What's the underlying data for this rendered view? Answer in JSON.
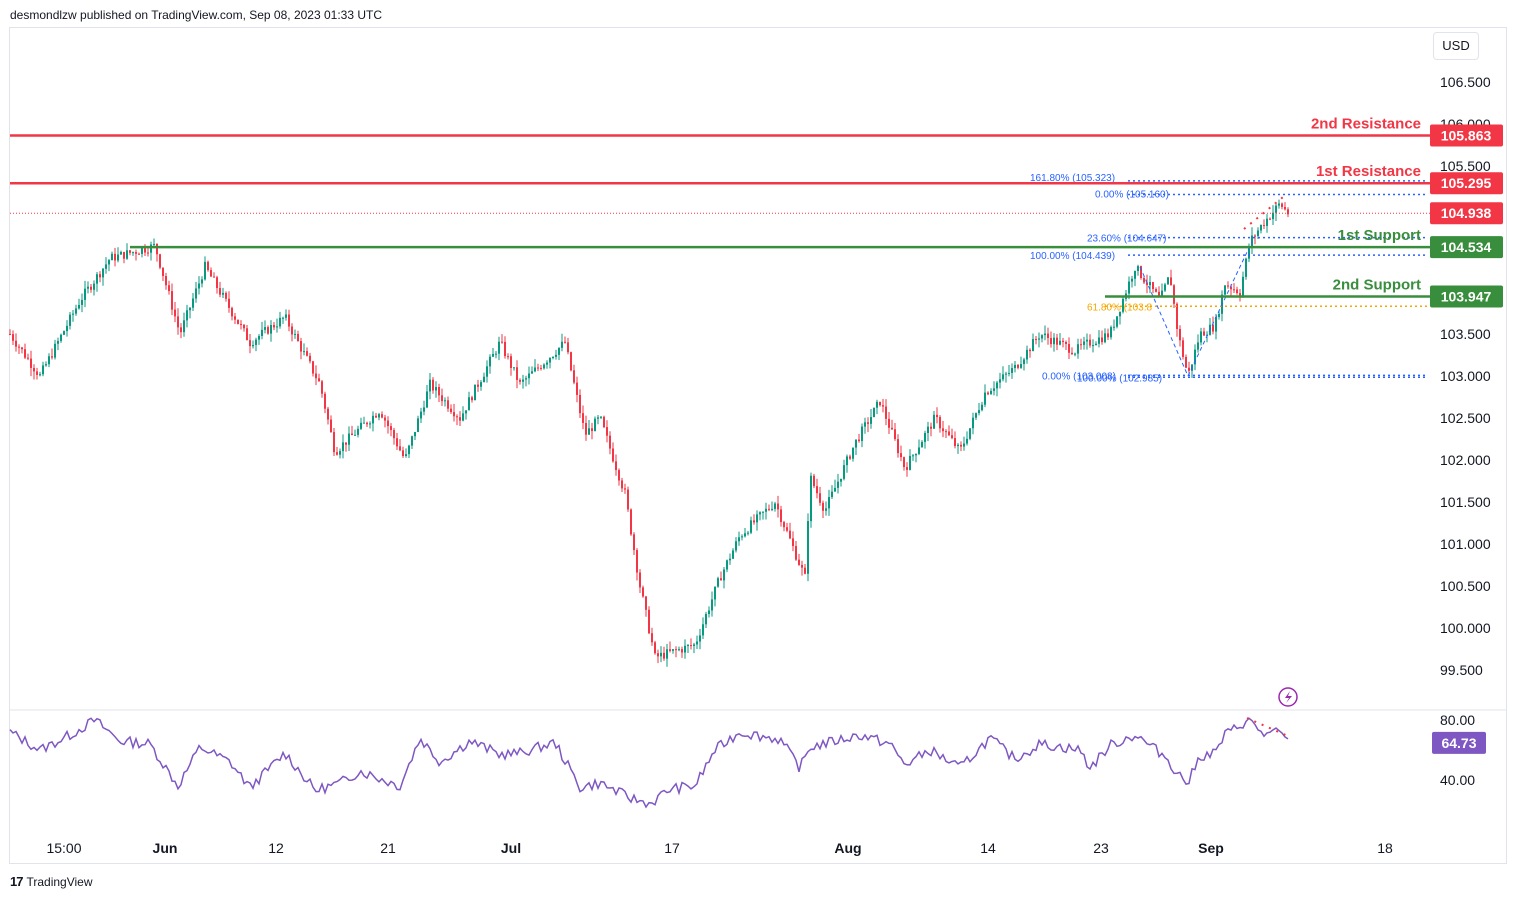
{
  "header": {
    "published": "desmondlzw published on TradingView.com, Sep 08, 2023 01:33 UTC"
  },
  "currency_button": "USD",
  "footer": {
    "logo": "17",
    "brand": "TradingView"
  },
  "colors": {
    "up": "#089981",
    "down": "#f23645",
    "resistance": "#f23645",
    "support": "#388e3c",
    "fib_blue": "#2962ff",
    "fib_orange": "#f7a600",
    "rsi": "#7e57c2",
    "current": "#f23645"
  },
  "chart_data": [
    {
      "type": "candlestick",
      "symbol_quote": "USD",
      "ylim": [
        99.2,
        107.0
      ],
      "y_ticks": [
        "106.500",
        "106.000",
        "105.500",
        "103.500",
        "103.000",
        "102.500",
        "102.000",
        "101.500",
        "101.000",
        "100.500",
        "100.000",
        "99.500"
      ],
      "x_ticks": [
        "15:00",
        "Jun",
        "12",
        "21",
        "Jul",
        "17",
        "Aug",
        "14",
        "23",
        "Sep",
        "18"
      ],
      "series_path": [
        {
          "x": 10,
          "y": 103.5
        },
        {
          "x": 40,
          "y": 103.0
        },
        {
          "x": 80,
          "y": 103.9
        },
        {
          "x": 110,
          "y": 104.4
        },
        {
          "x": 155,
          "y": 104.55
        },
        {
          "x": 180,
          "y": 103.5
        },
        {
          "x": 205,
          "y": 104.3
        },
        {
          "x": 250,
          "y": 103.4
        },
        {
          "x": 285,
          "y": 103.7
        },
        {
          "x": 320,
          "y": 102.9
        },
        {
          "x": 335,
          "y": 102.1
        },
        {
          "x": 380,
          "y": 102.6
        },
        {
          "x": 405,
          "y": 102.0
        },
        {
          "x": 430,
          "y": 102.9
        },
        {
          "x": 460,
          "y": 102.5
        },
        {
          "x": 500,
          "y": 103.4
        },
        {
          "x": 520,
          "y": 102.9
        },
        {
          "x": 565,
          "y": 103.4
        },
        {
          "x": 585,
          "y": 102.3
        },
        {
          "x": 600,
          "y": 102.5
        },
        {
          "x": 625,
          "y": 101.6
        },
        {
          "x": 640,
          "y": 100.5
        },
        {
          "x": 655,
          "y": 99.65
        },
        {
          "x": 695,
          "y": 99.8
        },
        {
          "x": 720,
          "y": 100.6
        },
        {
          "x": 740,
          "y": 101.1
        },
        {
          "x": 775,
          "y": 101.5
        },
        {
          "x": 805,
          "y": 100.6
        },
        {
          "x": 810,
          "y": 101.8
        },
        {
          "x": 825,
          "y": 101.4
        },
        {
          "x": 855,
          "y": 102.2
        },
        {
          "x": 880,
          "y": 102.7
        },
        {
          "x": 905,
          "y": 101.9
        },
        {
          "x": 935,
          "y": 102.5
        },
        {
          "x": 960,
          "y": 102.1
        },
        {
          "x": 985,
          "y": 102.8
        },
        {
          "x": 1015,
          "y": 103.1
        },
        {
          "x": 1040,
          "y": 103.5
        },
        {
          "x": 1075,
          "y": 103.3
        },
        {
          "x": 1090,
          "y": 103.4
        },
        {
          "x": 1110,
          "y": 103.5
        },
        {
          "x": 1135,
          "y": 104.3
        },
        {
          "x": 1160,
          "y": 103.9
        },
        {
          "x": 1170,
          "y": 104.2
        },
        {
          "x": 1178,
          "y": 103.5
        },
        {
          "x": 1188,
          "y": 103.0
        },
        {
          "x": 1200,
          "y": 103.5
        },
        {
          "x": 1215,
          "y": 103.6
        },
        {
          "x": 1225,
          "y": 104.1
        },
        {
          "x": 1240,
          "y": 104.0
        },
        {
          "x": 1250,
          "y": 104.6
        },
        {
          "x": 1262,
          "y": 104.8
        },
        {
          "x": 1280,
          "y": 105.05
        },
        {
          "x": 1288,
          "y": 104.94
        }
      ],
      "levels": [
        {
          "label": "2nd Resistance",
          "value": 105.863,
          "display": "105.863",
          "kind": "resistance"
        },
        {
          "label": "1st Resistance",
          "value": 105.295,
          "display": "105.295",
          "kind": "resistance"
        },
        {
          "label": "1st Support",
          "value": 104.534,
          "display": "104.534",
          "kind": "support"
        },
        {
          "label": "2nd Support",
          "value": 103.947,
          "display": "103.947",
          "kind": "support"
        }
      ],
      "current_price": {
        "value": 104.938,
        "display": "104.938"
      },
      "fibonacci": [
        {
          "text": "161.80% (105.323)",
          "value": 105.323,
          "color": "blue"
        },
        {
          "text": "0.00% (105.160)",
          "value": 105.16,
          "color": "blue"
        },
        {
          "text": "23.60% (104.647)",
          "value": 104.647,
          "color": "blue"
        },
        {
          "text": "100.00% (104.439)",
          "value": 104.439,
          "color": "blue"
        },
        {
          "text": "61.80% (103.8",
          "value": 103.83,
          "color": "orange"
        },
        {
          "text": "0.00% (103.008)",
          "value": 103.008,
          "color": "blue"
        },
        {
          "text": "100.00% (102.985)",
          "value": 102.985,
          "color": "blue"
        }
      ]
    },
    {
      "type": "line",
      "name": "RSI",
      "ylim": [
        25,
        92
      ],
      "y_ticks": [
        "80.00",
        "40.00"
      ],
      "current": {
        "value": 64.73,
        "display": "64.73"
      },
      "series_path": [
        {
          "x": 10,
          "y": 72
        },
        {
          "x": 40,
          "y": 60
        },
        {
          "x": 70,
          "y": 70
        },
        {
          "x": 95,
          "y": 80
        },
        {
          "x": 120,
          "y": 66
        },
        {
          "x": 150,
          "y": 64
        },
        {
          "x": 178,
          "y": 36
        },
        {
          "x": 200,
          "y": 62
        },
        {
          "x": 230,
          "y": 52
        },
        {
          "x": 250,
          "y": 35
        },
        {
          "x": 285,
          "y": 58
        },
        {
          "x": 315,
          "y": 33
        },
        {
          "x": 340,
          "y": 38
        },
        {
          "x": 360,
          "y": 46
        },
        {
          "x": 400,
          "y": 36
        },
        {
          "x": 420,
          "y": 68
        },
        {
          "x": 440,
          "y": 52
        },
        {
          "x": 470,
          "y": 66
        },
        {
          "x": 500,
          "y": 57
        },
        {
          "x": 520,
          "y": 58
        },
        {
          "x": 555,
          "y": 65
        },
        {
          "x": 580,
          "y": 35
        },
        {
          "x": 600,
          "y": 38
        },
        {
          "x": 630,
          "y": 28
        },
        {
          "x": 650,
          "y": 24
        },
        {
          "x": 670,
          "y": 34
        },
        {
          "x": 695,
          "y": 36
        },
        {
          "x": 715,
          "y": 60
        },
        {
          "x": 740,
          "y": 72
        },
        {
          "x": 780,
          "y": 67
        },
        {
          "x": 800,
          "y": 48
        },
        {
          "x": 810,
          "y": 62
        },
        {
          "x": 860,
          "y": 70
        },
        {
          "x": 890,
          "y": 64
        },
        {
          "x": 905,
          "y": 50
        },
        {
          "x": 930,
          "y": 60
        },
        {
          "x": 960,
          "y": 48
        },
        {
          "x": 990,
          "y": 68
        },
        {
          "x": 1015,
          "y": 54
        },
        {
          "x": 1040,
          "y": 64
        },
        {
          "x": 1080,
          "y": 60
        },
        {
          "x": 1090,
          "y": 48
        },
        {
          "x": 1110,
          "y": 63
        },
        {
          "x": 1135,
          "y": 70
        },
        {
          "x": 1165,
          "y": 56
        },
        {
          "x": 1178,
          "y": 44
        },
        {
          "x": 1188,
          "y": 38
        },
        {
          "x": 1200,
          "y": 56
        },
        {
          "x": 1215,
          "y": 58
        },
        {
          "x": 1225,
          "y": 70
        },
        {
          "x": 1248,
          "y": 80
        },
        {
          "x": 1265,
          "y": 70
        },
        {
          "x": 1280,
          "y": 72
        },
        {
          "x": 1288,
          "y": 64.73
        }
      ]
    }
  ]
}
